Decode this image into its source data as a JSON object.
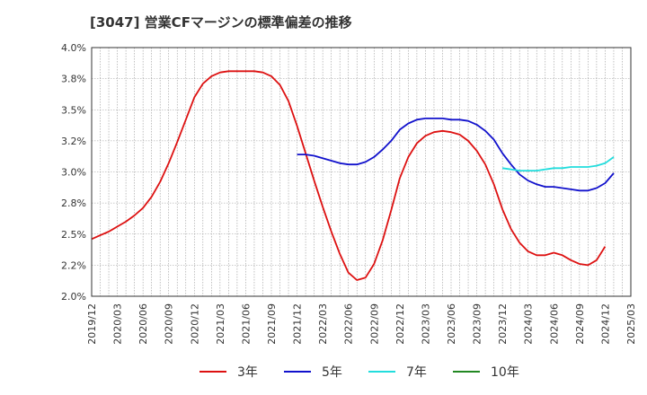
{
  "chart_data": {
    "type": "line",
    "title": "[3047]  営業CFマージンの標準偏差の推移",
    "ylim": [
      0.02,
      0.04
    ],
    "y_ticks": [
      0.02,
      0.0225,
      0.025,
      0.0275,
      0.03,
      0.0325,
      0.035,
      0.0375,
      0.04
    ],
    "y_tick_labels": [
      "2.0%",
      "2.2%",
      "2.5%",
      "2.8%",
      "3.0%",
      "3.2%",
      "3.5%",
      "3.8%",
      "4.0%"
    ],
    "x_tick_labels": [
      "2019/12",
      "2020/03",
      "2020/06",
      "2020/09",
      "2020/12",
      "2021/03",
      "2021/06",
      "2021/09",
      "2021/12",
      "2022/03",
      "2022/06",
      "2022/09",
      "2022/12",
      "2023/03",
      "2023/06",
      "2023/09",
      "2023/12",
      "2024/03",
      "2024/06",
      "2024/09",
      "2024/12",
      "2025/03"
    ],
    "grid": true,
    "legend_position": "bottom",
    "series": [
      {
        "name": "3年",
        "color": "#dd1111",
        "values": [
          [
            0,
            0.0246
          ],
          [
            1,
            0.0249
          ],
          [
            2,
            0.0252
          ],
          [
            3,
            0.0256
          ],
          [
            4,
            0.026
          ],
          [
            5,
            0.0265
          ],
          [
            6,
            0.0271
          ],
          [
            7,
            0.028
          ],
          [
            8,
            0.0292
          ],
          [
            9,
            0.0307
          ],
          [
            10,
            0.0324
          ],
          [
            11,
            0.0342
          ],
          [
            12,
            0.036
          ],
          [
            13,
            0.0371
          ],
          [
            14,
            0.0377
          ],
          [
            15,
            0.038
          ],
          [
            16,
            0.0381
          ],
          [
            17,
            0.0381
          ],
          [
            18,
            0.0381
          ],
          [
            19,
            0.0381
          ],
          [
            20,
            0.038
          ],
          [
            21,
            0.0377
          ],
          [
            22,
            0.037
          ],
          [
            23,
            0.0357
          ],
          [
            24,
            0.0337
          ],
          [
            25,
            0.0315
          ],
          [
            26,
            0.0293
          ],
          [
            27,
            0.0272
          ],
          [
            28,
            0.0252
          ],
          [
            29,
            0.0234
          ],
          [
            30,
            0.0219
          ],
          [
            31,
            0.0213
          ],
          [
            32,
            0.0215
          ],
          [
            33,
            0.0226
          ],
          [
            34,
            0.0245
          ],
          [
            35,
            0.0269
          ],
          [
            36,
            0.0295
          ],
          [
            37,
            0.0312
          ],
          [
            38,
            0.0323
          ],
          [
            39,
            0.0329
          ],
          [
            40,
            0.0332
          ],
          [
            41,
            0.0333
          ],
          [
            42,
            0.0332
          ],
          [
            43,
            0.033
          ],
          [
            44,
            0.0325
          ],
          [
            45,
            0.0317
          ],
          [
            46,
            0.0306
          ],
          [
            47,
            0.029
          ],
          [
            48,
            0.027
          ],
          [
            49,
            0.0254
          ],
          [
            50,
            0.0243
          ],
          [
            51,
            0.0236
          ],
          [
            52,
            0.0233
          ],
          [
            53,
            0.0233
          ],
          [
            54,
            0.0235
          ],
          [
            55,
            0.0233
          ],
          [
            56,
            0.0229
          ],
          [
            57,
            0.0226
          ],
          [
            58,
            0.0225
          ],
          [
            59,
            0.0229
          ],
          [
            60,
            0.024
          ]
        ]
      },
      {
        "name": "5年",
        "color": "#1111cc",
        "values": [
          [
            24,
            0.0314
          ],
          [
            25,
            0.0314
          ],
          [
            26,
            0.0313
          ],
          [
            27,
            0.0311
          ],
          [
            28,
            0.0309
          ],
          [
            29,
            0.0307
          ],
          [
            30,
            0.0306
          ],
          [
            31,
            0.0306
          ],
          [
            32,
            0.0308
          ],
          [
            33,
            0.0312
          ],
          [
            34,
            0.0318
          ],
          [
            35,
            0.0325
          ],
          [
            36,
            0.0334
          ],
          [
            37,
            0.0339
          ],
          [
            38,
            0.0342
          ],
          [
            39,
            0.0343
          ],
          [
            40,
            0.0343
          ],
          [
            41,
            0.0343
          ],
          [
            42,
            0.0342
          ],
          [
            43,
            0.0342
          ],
          [
            44,
            0.0341
          ],
          [
            45,
            0.0338
          ],
          [
            46,
            0.0333
          ],
          [
            47,
            0.0326
          ],
          [
            48,
            0.0315
          ],
          [
            49,
            0.0306
          ],
          [
            50,
            0.0298
          ],
          [
            51,
            0.0293
          ],
          [
            52,
            0.029
          ],
          [
            53,
            0.0288
          ],
          [
            54,
            0.0288
          ],
          [
            55,
            0.0287
          ],
          [
            56,
            0.0286
          ],
          [
            57,
            0.0285
          ],
          [
            58,
            0.0285
          ],
          [
            59,
            0.0287
          ],
          [
            60,
            0.0291
          ],
          [
            61,
            0.0299
          ]
        ]
      },
      {
        "name": "7年",
        "color": "#22dddd",
        "values": [
          [
            48,
            0.0303
          ],
          [
            49,
            0.0302
          ],
          [
            50,
            0.0301
          ],
          [
            51,
            0.0301
          ],
          [
            52,
            0.0301
          ],
          [
            53,
            0.0302
          ],
          [
            54,
            0.0303
          ],
          [
            55,
            0.0303
          ],
          [
            56,
            0.0304
          ],
          [
            57,
            0.0304
          ],
          [
            58,
            0.0304
          ],
          [
            59,
            0.0305
          ],
          [
            60,
            0.0307
          ],
          [
            61,
            0.0312
          ]
        ]
      },
      {
        "name": "10年",
        "color": "#228822",
        "values": []
      }
    ]
  }
}
